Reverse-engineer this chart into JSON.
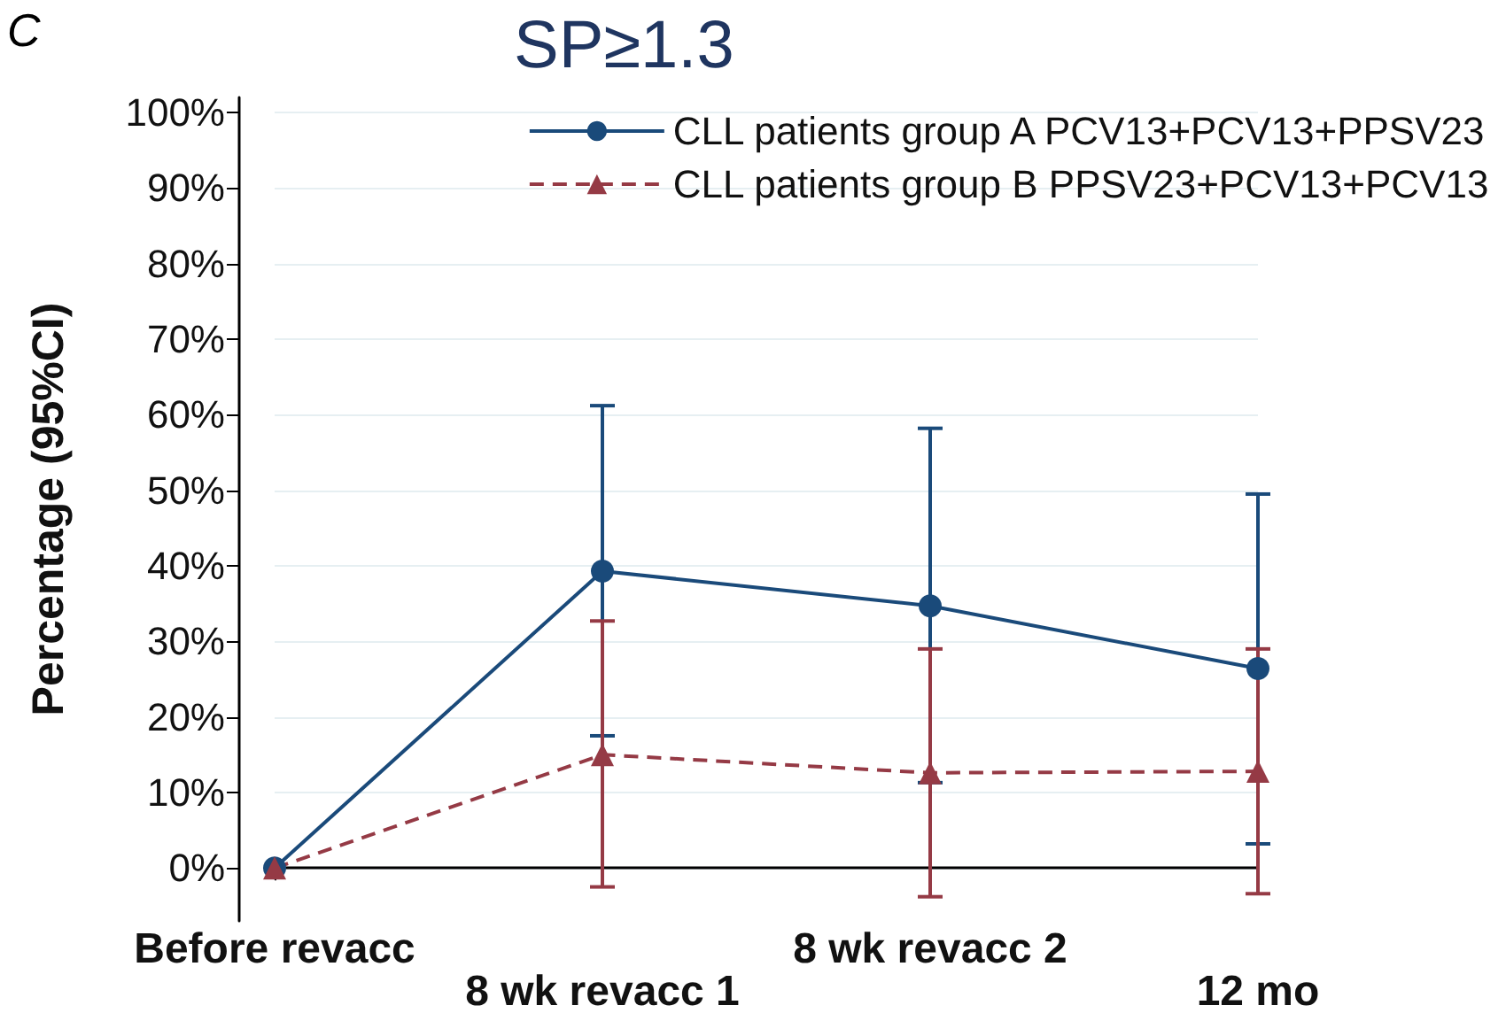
{
  "chart_data": {
    "type": "line",
    "title": "SP≥1.3",
    "ylabel": "Percentage (95%CI)",
    "annotations": [
      "C"
    ],
    "categories": [
      "Before revacc",
      "8 wk revacc 1",
      "8 wk revacc 2",
      "12 mo"
    ],
    "ylim": [
      -7,
      102
    ],
    "yticks": [
      {
        "value": 0,
        "label": "0%"
      },
      {
        "value": 10,
        "label": "10%"
      },
      {
        "value": 20,
        "label": "20%"
      },
      {
        "value": 30,
        "label": "30%"
      },
      {
        "value": 40,
        "label": "40%"
      },
      {
        "value": 50,
        "label": "50%"
      },
      {
        "value": 60,
        "label": "60%"
      },
      {
        "value": 70,
        "label": "70%"
      },
      {
        "value": 80,
        "label": "80%"
      },
      {
        "value": 90,
        "label": "90%"
      },
      {
        "value": 100,
        "label": "100%"
      }
    ],
    "grid": "y",
    "legend": "top right",
    "series": [
      {
        "name": "CLL patients group A PCV13+PCV13+PPSV23",
        "color": "#1a4a7a",
        "marker": "circle",
        "line_style": "solid",
        "values": [
          0,
          39.3,
          34.7,
          26.4
        ],
        "errors": [
          null,
          [
            17.5,
            61.2
          ],
          [
            11.3,
            58.2
          ],
          [
            3.2,
            49.5
          ]
        ]
      },
      {
        "name": "CLL patients group B PPSV23+PCV13+PCV13",
        "color": "#953a45",
        "marker": "triangle",
        "line_style": "dashed",
        "values": [
          0,
          15.0,
          12.6,
          12.8
        ],
        "errors": [
          null,
          [
            -2.5,
            32.7
          ],
          [
            -3.8,
            29.0
          ],
          [
            -3.4,
            29.0
          ]
        ]
      }
    ]
  }
}
